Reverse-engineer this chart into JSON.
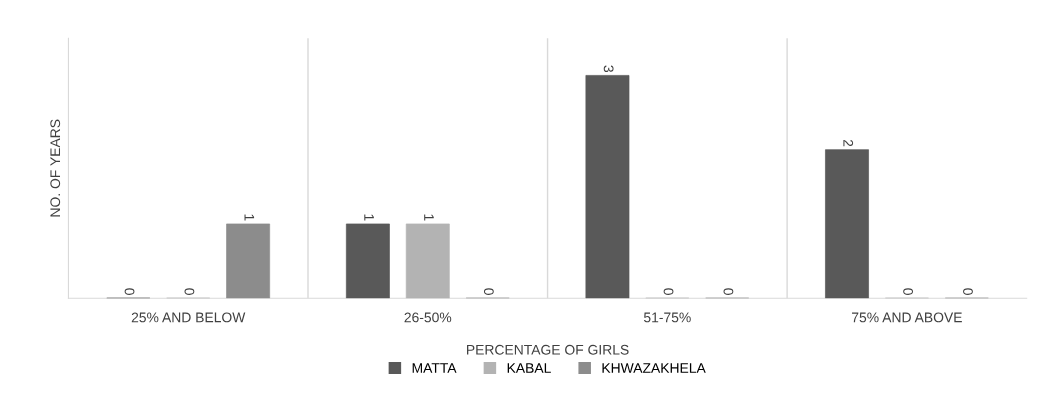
{
  "chart_data": {
    "type": "bar",
    "xlabel": "PERCENTAGE OF GIRLS",
    "ylabel": "NO. OF YEARS",
    "categories": [
      "25% AND BELOW",
      "26-50%",
      "51-75%",
      "75% AND ABOVE"
    ],
    "series": [
      {
        "name": "MATTA",
        "color": "#595959",
        "values": [
          0,
          1,
          3,
          2
        ]
      },
      {
        "name": "KABAL",
        "color": "#b3b3b3",
        "values": [
          0,
          1,
          0,
          0
        ]
      },
      {
        "name": "KHWAZAKHELA",
        "color": "#8c8c8c",
        "values": [
          1,
          0,
          0,
          0
        ]
      }
    ],
    "ylim": [
      0,
      3.5
    ],
    "data_labels": true,
    "grid": "x",
    "legend": "bottom",
    "tick_labels": "x"
  }
}
